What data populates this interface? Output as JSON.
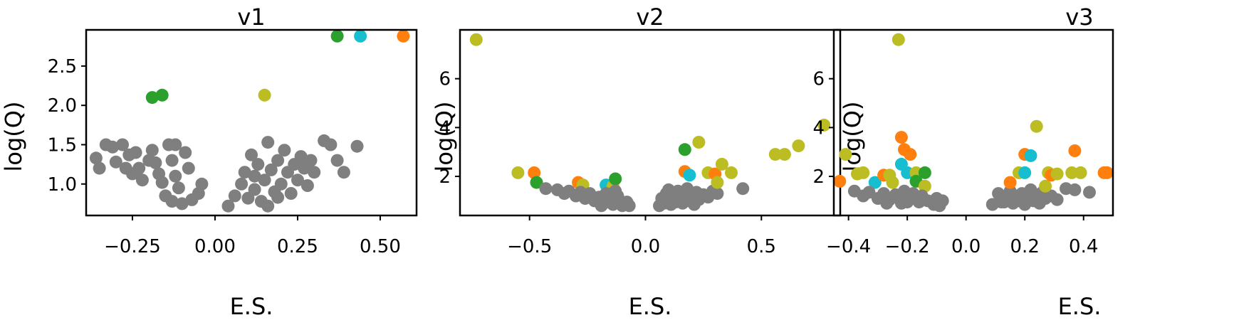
{
  "colors": {
    "gray": "#7f7f7f",
    "green": "#2ca02c",
    "cyan": "#17becf",
    "orange": "#ff7f0e",
    "olive": "#bcbd22"
  },
  "chart_data": [
    {
      "type": "scatter",
      "title": "v1",
      "xlabel": "E.S.",
      "ylabel": "log(Q)",
      "xlim": [
        -0.39,
        0.61
      ],
      "ylim": [
        0.6,
        2.96
      ],
      "xticks": [
        -0.25,
        0.0,
        0.25,
        0.5
      ],
      "xtick_labels": [
        "−0.25",
        "0.00",
        "0.25",
        "0.50"
      ],
      "yticks": [
        1.0,
        1.5,
        2.0,
        2.5
      ],
      "ytick_labels": [
        "1.0",
        "1.5",
        "2.0",
        "2.5"
      ],
      "points": [
        {
          "x": -0.36,
          "y": 1.33,
          "c": "gray"
        },
        {
          "x": -0.35,
          "y": 1.2,
          "c": "gray"
        },
        {
          "x": -0.33,
          "y": 1.5,
          "c": "gray"
        },
        {
          "x": -0.31,
          "y": 1.47,
          "c": "gray"
        },
        {
          "x": -0.3,
          "y": 1.28,
          "c": "gray"
        },
        {
          "x": -0.28,
          "y": 1.5,
          "c": "gray"
        },
        {
          "x": -0.27,
          "y": 1.2,
          "c": "gray"
        },
        {
          "x": -0.26,
          "y": 1.37,
          "c": "gray"
        },
        {
          "x": -0.25,
          "y": 1.13,
          "c": "gray"
        },
        {
          "x": -0.24,
          "y": 1.4,
          "c": "gray"
        },
        {
          "x": -0.23,
          "y": 1.2,
          "c": "gray"
        },
        {
          "x": -0.22,
          "y": 1.05,
          "c": "gray"
        },
        {
          "x": -0.2,
          "y": 1.3,
          "c": "gray"
        },
        {
          "x": -0.19,
          "y": 1.43,
          "c": "gray"
        },
        {
          "x": -0.18,
          "y": 1.27,
          "c": "gray"
        },
        {
          "x": -0.17,
          "y": 1.13,
          "c": "gray"
        },
        {
          "x": -0.16,
          "y": 1.02,
          "c": "gray"
        },
        {
          "x": -0.15,
          "y": 0.85,
          "c": "gray"
        },
        {
          "x": -0.14,
          "y": 1.5,
          "c": "gray"
        },
        {
          "x": -0.13,
          "y": 1.3,
          "c": "gray"
        },
        {
          "x": -0.12,
          "y": 1.5,
          "c": "gray"
        },
        {
          "x": -0.12,
          "y": 1.1,
          "c": "gray"
        },
        {
          "x": -0.11,
          "y": 0.95,
          "c": "gray"
        },
        {
          "x": -0.1,
          "y": 0.75,
          "c": "gray"
        },
        {
          "x": -0.09,
          "y": 1.4,
          "c": "gray"
        },
        {
          "x": -0.08,
          "y": 1.2,
          "c": "gray"
        },
        {
          "x": -0.07,
          "y": 0.8,
          "c": "gray"
        },
        {
          "x": -0.05,
          "y": 0.88,
          "c": "gray"
        },
        {
          "x": -0.04,
          "y": 1.0,
          "c": "gray"
        },
        {
          "x": -0.13,
          "y": 0.78,
          "c": "gray"
        },
        {
          "x": 0.04,
          "y": 0.72,
          "c": "gray"
        },
        {
          "x": 0.06,
          "y": 0.85,
          "c": "gray"
        },
        {
          "x": 0.08,
          "y": 1.0,
          "c": "gray"
        },
        {
          "x": 0.09,
          "y": 1.15,
          "c": "gray"
        },
        {
          "x": 0.1,
          "y": 0.82,
          "c": "gray"
        },
        {
          "x": 0.11,
          "y": 1.37,
          "c": "gray"
        },
        {
          "x": 0.12,
          "y": 0.93,
          "c": "gray"
        },
        {
          "x": 0.13,
          "y": 1.25,
          "c": "gray"
        },
        {
          "x": 0.14,
          "y": 0.78,
          "c": "gray"
        },
        {
          "x": 0.15,
          "y": 1.05,
          "c": "gray"
        },
        {
          "x": 0.16,
          "y": 1.53,
          "c": "gray"
        },
        {
          "x": 0.16,
          "y": 0.72,
          "c": "gray"
        },
        {
          "x": 0.17,
          "y": 1.18,
          "c": "gray"
        },
        {
          "x": 0.18,
          "y": 0.9,
          "c": "gray"
        },
        {
          "x": 0.19,
          "y": 1.3,
          "c": "gray"
        },
        {
          "x": 0.2,
          "y": 1.0,
          "c": "gray"
        },
        {
          "x": 0.21,
          "y": 1.43,
          "c": "gray"
        },
        {
          "x": 0.22,
          "y": 1.15,
          "c": "gray"
        },
        {
          "x": 0.23,
          "y": 0.88,
          "c": "gray"
        },
        {
          "x": 0.24,
          "y": 1.25,
          "c": "gray"
        },
        {
          "x": 0.25,
          "y": 1.05,
          "c": "gray"
        },
        {
          "x": 0.26,
          "y": 1.35,
          "c": "gray"
        },
        {
          "x": 0.27,
          "y": 1.2,
          "c": "gray"
        },
        {
          "x": 0.28,
          "y": 0.98,
          "c": "gray"
        },
        {
          "x": 0.29,
          "y": 1.3,
          "c": "gray"
        },
        {
          "x": 0.3,
          "y": 1.15,
          "c": "gray"
        },
        {
          "x": 0.33,
          "y": 1.55,
          "c": "gray"
        },
        {
          "x": 0.35,
          "y": 1.5,
          "c": "gray"
        },
        {
          "x": 0.37,
          "y": 1.3,
          "c": "gray"
        },
        {
          "x": 0.39,
          "y": 1.15,
          "c": "gray"
        },
        {
          "x": 0.43,
          "y": 1.48,
          "c": "gray"
        },
        {
          "x": 0.12,
          "y": 1.1,
          "c": "gray"
        },
        {
          "x": 0.19,
          "y": 0.83,
          "c": "gray"
        },
        {
          "x": -0.19,
          "y": 2.1,
          "c": "green"
        },
        {
          "x": -0.16,
          "y": 2.13,
          "c": "green"
        },
        {
          "x": 0.15,
          "y": 2.13,
          "c": "olive"
        },
        {
          "x": 0.37,
          "y": 2.88,
          "c": "green"
        },
        {
          "x": 0.44,
          "y": 2.88,
          "c": "cyan"
        },
        {
          "x": 0.57,
          "y": 2.88,
          "c": "orange"
        }
      ]
    },
    {
      "type": "scatter",
      "title": "v2",
      "xlabel": "E.S.",
      "ylabel": "log(Q)",
      "xlim": [
        -0.8,
        0.84
      ],
      "ylim": [
        0.4,
        8.0
      ],
      "xticks": [
        -0.5,
        0.0,
        0.5
      ],
      "xtick_labels": [
        "−0.5",
        "0.0",
        "0.5"
      ],
      "yticks": [
        2,
        4,
        6
      ],
      "ytick_labels": [
        "2",
        "4",
        "6"
      ],
      "points": [
        {
          "x": -0.73,
          "y": 7.6,
          "c": "olive"
        },
        {
          "x": -0.55,
          "y": 2.15,
          "c": "olive"
        },
        {
          "x": -0.48,
          "y": 2.15,
          "c": "orange"
        },
        {
          "x": -0.47,
          "y": 1.75,
          "c": "green"
        },
        {
          "x": -0.29,
          "y": 1.75,
          "c": "orange"
        },
        {
          "x": -0.27,
          "y": 1.65,
          "c": "olive"
        },
        {
          "x": -0.17,
          "y": 1.65,
          "c": "cyan"
        },
        {
          "x": -0.14,
          "y": 1.6,
          "c": "olive"
        },
        {
          "x": -0.13,
          "y": 1.9,
          "c": "green"
        },
        {
          "x": -0.43,
          "y": 1.5,
          "c": "gray"
        },
        {
          "x": -0.38,
          "y": 1.45,
          "c": "gray"
        },
        {
          "x": -0.35,
          "y": 1.3,
          "c": "gray"
        },
        {
          "x": -0.33,
          "y": 1.4,
          "c": "gray"
        },
        {
          "x": -0.3,
          "y": 1.2,
          "c": "gray"
        },
        {
          "x": -0.28,
          "y": 1.35,
          "c": "gray"
        },
        {
          "x": -0.26,
          "y": 1.1,
          "c": "gray"
        },
        {
          "x": -0.24,
          "y": 1.3,
          "c": "gray"
        },
        {
          "x": -0.22,
          "y": 1.0,
          "c": "gray"
        },
        {
          "x": -0.2,
          "y": 1.15,
          "c": "gray"
        },
        {
          "x": -0.18,
          "y": 0.9,
          "c": "gray"
        },
        {
          "x": -0.17,
          "y": 1.3,
          "c": "gray"
        },
        {
          "x": -0.15,
          "y": 1.05,
          "c": "gray"
        },
        {
          "x": -0.14,
          "y": 0.85,
          "c": "gray"
        },
        {
          "x": -0.12,
          "y": 1.2,
          "c": "gray"
        },
        {
          "x": -0.11,
          "y": 1.0,
          "c": "gray"
        },
        {
          "x": -0.1,
          "y": 0.8,
          "c": "gray"
        },
        {
          "x": -0.08,
          "y": 0.95,
          "c": "gray"
        },
        {
          "x": -0.07,
          "y": 0.8,
          "c": "gray"
        },
        {
          "x": -0.13,
          "y": 1.4,
          "c": "gray"
        },
        {
          "x": -0.19,
          "y": 0.8,
          "c": "gray"
        },
        {
          "x": 0.06,
          "y": 0.8,
          "c": "gray"
        },
        {
          "x": 0.07,
          "y": 1.1,
          "c": "gray"
        },
        {
          "x": 0.08,
          "y": 0.9,
          "c": "gray"
        },
        {
          "x": 0.09,
          "y": 1.3,
          "c": "gray"
        },
        {
          "x": 0.1,
          "y": 1.0,
          "c": "gray"
        },
        {
          "x": 0.11,
          "y": 0.85,
          "c": "gray"
        },
        {
          "x": 0.12,
          "y": 1.2,
          "c": "gray"
        },
        {
          "x": 0.13,
          "y": 0.95,
          "c": "gray"
        },
        {
          "x": 0.14,
          "y": 1.4,
          "c": "gray"
        },
        {
          "x": 0.15,
          "y": 1.1,
          "c": "gray"
        },
        {
          "x": 0.16,
          "y": 0.9,
          "c": "gray"
        },
        {
          "x": 0.17,
          "y": 1.3,
          "c": "gray"
        },
        {
          "x": 0.18,
          "y": 1.5,
          "c": "gray"
        },
        {
          "x": 0.19,
          "y": 1.0,
          "c": "gray"
        },
        {
          "x": 0.2,
          "y": 1.2,
          "c": "gray"
        },
        {
          "x": 0.21,
          "y": 0.85,
          "c": "gray"
        },
        {
          "x": 0.22,
          "y": 1.35,
          "c": "gray"
        },
        {
          "x": 0.23,
          "y": 1.05,
          "c": "gray"
        },
        {
          "x": 0.25,
          "y": 1.25,
          "c": "gray"
        },
        {
          "x": 0.27,
          "y": 1.15,
          "c": "gray"
        },
        {
          "x": 0.29,
          "y": 1.4,
          "c": "gray"
        },
        {
          "x": 0.31,
          "y": 1.3,
          "c": "gray"
        },
        {
          "x": 0.42,
          "y": 1.5,
          "c": "gray"
        },
        {
          "x": 0.1,
          "y": 1.45,
          "c": "gray"
        },
        {
          "x": 0.17,
          "y": 3.1,
          "c": "green"
        },
        {
          "x": 0.17,
          "y": 2.2,
          "c": "orange"
        },
        {
          "x": 0.19,
          "y": 2.05,
          "c": "cyan"
        },
        {
          "x": 0.23,
          "y": 3.4,
          "c": "olive"
        },
        {
          "x": 0.27,
          "y": 2.15,
          "c": "olive"
        },
        {
          "x": 0.3,
          "y": 2.1,
          "c": "orange"
        },
        {
          "x": 0.31,
          "y": 1.75,
          "c": "olive"
        },
        {
          "x": 0.33,
          "y": 2.5,
          "c": "olive"
        },
        {
          "x": 0.37,
          "y": 2.15,
          "c": "olive"
        },
        {
          "x": 0.56,
          "y": 2.9,
          "c": "olive"
        },
        {
          "x": 0.6,
          "y": 2.9,
          "c": "olive"
        },
        {
          "x": 0.66,
          "y": 3.25,
          "c": "olive"
        },
        {
          "x": 0.77,
          "y": 4.1,
          "c": "olive"
        }
      ]
    },
    {
      "type": "scatter",
      "title": "v3",
      "xlabel": "E.S.",
      "ylabel": "log(Q)",
      "xlim": [
        -0.45,
        0.5
      ],
      "ylim": [
        0.4,
        8.0
      ],
      "xticks": [
        -0.4,
        -0.2,
        0.0,
        0.2,
        0.4
      ],
      "xtick_labels": [
        "−0.4",
        "−0.2",
        "0.0",
        "0.2",
        "0.4"
      ],
      "yticks": [
        2,
        4,
        6
      ],
      "ytick_labels": [
        "2",
        "4",
        "6"
      ],
      "points": [
        {
          "x": -0.23,
          "y": 7.6,
          "c": "olive"
        },
        {
          "x": -0.41,
          "y": 2.9,
          "c": "olive"
        },
        {
          "x": -0.43,
          "y": 1.8,
          "c": "orange"
        },
        {
          "x": -0.37,
          "y": 2.1,
          "c": "olive"
        },
        {
          "x": -0.35,
          "y": 2.15,
          "c": "olive"
        },
        {
          "x": -0.31,
          "y": 1.75,
          "c": "cyan"
        },
        {
          "x": -0.28,
          "y": 2.05,
          "c": "orange"
        },
        {
          "x": -0.26,
          "y": 2.05,
          "c": "olive"
        },
        {
          "x": -0.25,
          "y": 1.75,
          "c": "olive"
        },
        {
          "x": -0.22,
          "y": 3.6,
          "c": "orange"
        },
        {
          "x": -0.21,
          "y": 3.1,
          "c": "orange"
        },
        {
          "x": -0.19,
          "y": 2.9,
          "c": "orange"
        },
        {
          "x": -0.22,
          "y": 2.5,
          "c": "cyan"
        },
        {
          "x": -0.2,
          "y": 2.15,
          "c": "cyan"
        },
        {
          "x": -0.17,
          "y": 2.15,
          "c": "olive"
        },
        {
          "x": -0.14,
          "y": 2.15,
          "c": "green"
        },
        {
          "x": -0.17,
          "y": 1.8,
          "c": "green"
        },
        {
          "x": -0.14,
          "y": 1.6,
          "c": "olive"
        },
        {
          "x": -0.38,
          "y": 1.4,
          "c": "gray"
        },
        {
          "x": -0.35,
          "y": 1.2,
          "c": "gray"
        },
        {
          "x": -0.33,
          "y": 1.35,
          "c": "gray"
        },
        {
          "x": -0.3,
          "y": 1.1,
          "c": "gray"
        },
        {
          "x": -0.28,
          "y": 1.3,
          "c": "gray"
        },
        {
          "x": -0.26,
          "y": 1.05,
          "c": "gray"
        },
        {
          "x": -0.24,
          "y": 1.25,
          "c": "gray"
        },
        {
          "x": -0.22,
          "y": 0.9,
          "c": "gray"
        },
        {
          "x": -0.21,
          "y": 1.4,
          "c": "gray"
        },
        {
          "x": -0.19,
          "y": 1.1,
          "c": "gray"
        },
        {
          "x": -0.18,
          "y": 1.3,
          "c": "gray"
        },
        {
          "x": -0.16,
          "y": 0.95,
          "c": "gray"
        },
        {
          "x": -0.15,
          "y": 1.2,
          "c": "gray"
        },
        {
          "x": -0.13,
          "y": 1.0,
          "c": "gray"
        },
        {
          "x": -0.11,
          "y": 0.85,
          "c": "gray"
        },
        {
          "x": -0.1,
          "y": 1.1,
          "c": "gray"
        },
        {
          "x": -0.09,
          "y": 0.8,
          "c": "gray"
        },
        {
          "x": -0.08,
          "y": 1.0,
          "c": "gray"
        },
        {
          "x": -0.27,
          "y": 0.9,
          "c": "gray"
        },
        {
          "x": -0.2,
          "y": 0.95,
          "c": "gray"
        },
        {
          "x": 0.09,
          "y": 0.85,
          "c": "gray"
        },
        {
          "x": 0.11,
          "y": 1.3,
          "c": "gray"
        },
        {
          "x": 0.12,
          "y": 0.95,
          "c": "gray"
        },
        {
          "x": 0.14,
          "y": 1.1,
          "c": "gray"
        },
        {
          "x": 0.15,
          "y": 1.4,
          "c": "gray"
        },
        {
          "x": 0.16,
          "y": 0.9,
          "c": "gray"
        },
        {
          "x": 0.17,
          "y": 1.2,
          "c": "gray"
        },
        {
          "x": 0.18,
          "y": 1.0,
          "c": "gray"
        },
        {
          "x": 0.19,
          "y": 1.3,
          "c": "gray"
        },
        {
          "x": 0.2,
          "y": 0.85,
          "c": "gray"
        },
        {
          "x": 0.21,
          "y": 1.15,
          "c": "gray"
        },
        {
          "x": 0.22,
          "y": 1.45,
          "c": "gray"
        },
        {
          "x": 0.23,
          "y": 1.0,
          "c": "gray"
        },
        {
          "x": 0.24,
          "y": 1.25,
          "c": "gray"
        },
        {
          "x": 0.25,
          "y": 0.9,
          "c": "gray"
        },
        {
          "x": 0.26,
          "y": 1.35,
          "c": "gray"
        },
        {
          "x": 0.27,
          "y": 1.1,
          "c": "gray"
        },
        {
          "x": 0.29,
          "y": 1.2,
          "c": "gray"
        },
        {
          "x": 0.31,
          "y": 1.05,
          "c": "gray"
        },
        {
          "x": 0.34,
          "y": 1.5,
          "c": "gray"
        },
        {
          "x": 0.37,
          "y": 1.45,
          "c": "gray"
        },
        {
          "x": 0.42,
          "y": 1.35,
          "c": "gray"
        },
        {
          "x": 0.13,
          "y": 0.95,
          "c": "gray"
        },
        {
          "x": 0.15,
          "y": 1.75,
          "c": "orange"
        },
        {
          "x": 0.18,
          "y": 2.15,
          "c": "olive"
        },
        {
          "x": 0.2,
          "y": 2.15,
          "c": "cyan"
        },
        {
          "x": 0.2,
          "y": 2.9,
          "c": "orange"
        },
        {
          "x": 0.22,
          "y": 2.85,
          "c": "cyan"
        },
        {
          "x": 0.24,
          "y": 4.05,
          "c": "olive"
        },
        {
          "x": 0.27,
          "y": 1.6,
          "c": "olive"
        },
        {
          "x": 0.28,
          "y": 2.15,
          "c": "olive"
        },
        {
          "x": 0.29,
          "y": 2.05,
          "c": "orange"
        },
        {
          "x": 0.31,
          "y": 2.1,
          "c": "olive"
        },
        {
          "x": 0.37,
          "y": 3.05,
          "c": "orange"
        },
        {
          "x": 0.36,
          "y": 2.15,
          "c": "olive"
        },
        {
          "x": 0.39,
          "y": 2.15,
          "c": "olive"
        },
        {
          "x": 0.47,
          "y": 2.15,
          "c": "orange"
        },
        {
          "x": 0.48,
          "y": 2.15,
          "c": "orange"
        }
      ]
    }
  ]
}
